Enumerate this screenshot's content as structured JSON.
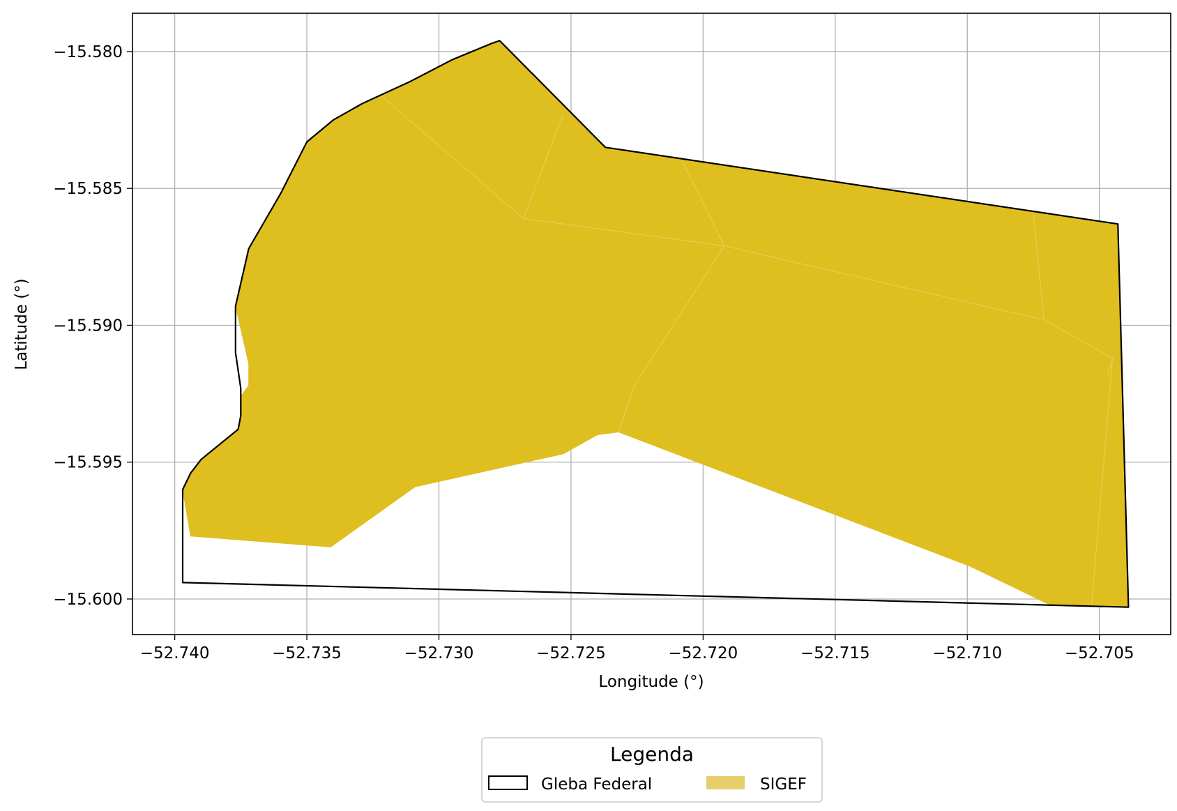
{
  "chart_data": {
    "type": "map",
    "xlabel": "Longitude (°)",
    "ylabel": "Latitude (°)",
    "xlim": [
      -52.7416,
      -52.7023
    ],
    "ylim": [
      -15.6013,
      -15.5786
    ],
    "grid": true,
    "x_ticks": [
      -52.74,
      -52.735,
      -52.73,
      -52.725,
      -52.72,
      -52.715,
      -52.71,
      -52.705
    ],
    "y_ticks": [
      -15.58,
      -15.585,
      -15.59,
      -15.595,
      -15.6
    ],
    "x_tick_labels": [
      "−52.740",
      "−52.735",
      "−52.730",
      "−52.725",
      "−52.720",
      "−52.715",
      "−52.710",
      "−52.705"
    ],
    "y_tick_labels": [
      "−15.580",
      "−15.585",
      "−15.590",
      "−15.595",
      "−15.600"
    ],
    "legend": {
      "title": "Legenda",
      "placement": "bottom-center",
      "entries": [
        {
          "label": "Gleba Federal",
          "style": "outline",
          "color": "#000000"
        },
        {
          "label": "SIGEF",
          "style": "fill",
          "color": "#e6cf6b"
        }
      ]
    },
    "layers": [
      {
        "name": "Gleba Federal",
        "kind": "outline",
        "stroke": "#000000",
        "points": [
          [
            -52.7397,
            -15.5994
          ],
          [
            -52.7397,
            -15.596
          ],
          [
            -52.7394,
            -15.5954
          ],
          [
            -52.739,
            -15.5949
          ],
          [
            -52.7376,
            -15.5938
          ],
          [
            -52.7375,
            -15.5933
          ],
          [
            -52.7375,
            -15.5923
          ],
          [
            -52.7377,
            -15.591
          ],
          [
            -52.7377,
            -15.5893
          ],
          [
            -52.7372,
            -15.5872
          ],
          [
            -52.736,
            -15.5852
          ],
          [
            -52.735,
            -15.5833
          ],
          [
            -52.734,
            -15.5825
          ],
          [
            -52.7329,
            -15.5819
          ],
          [
            -52.7311,
            -15.5811
          ],
          [
            -52.7295,
            -15.5803
          ],
          [
            -52.728,
            -15.5797
          ],
          [
            -52.7277,
            -15.5796
          ],
          [
            -52.7237,
            -15.5835
          ],
          [
            -52.7043,
            -15.5863
          ],
          [
            -52.7039,
            -15.6003
          ],
          [
            -52.7397,
            -15.5994
          ]
        ]
      },
      {
        "name": "SIGEF",
        "kind": "fill",
        "fill": "#dfbe1f",
        "points": [
          [
            -52.7394,
            -15.5977
          ],
          [
            -52.7341,
            -15.5981
          ],
          [
            -52.7309,
            -15.5959
          ],
          [
            -52.7253,
            -15.5947
          ],
          [
            -52.724,
            -15.594
          ],
          [
            -52.7232,
            -15.5939
          ],
          [
            -52.7099,
            -15.5988
          ],
          [
            -52.7069,
            -15.6002
          ],
          [
            -52.7039,
            -15.6003
          ],
          [
            -52.7043,
            -15.5863
          ],
          [
            -52.7237,
            -15.5835
          ],
          [
            -52.7277,
            -15.5796
          ],
          [
            -52.728,
            -15.5797
          ],
          [
            -52.7295,
            -15.5803
          ],
          [
            -52.7311,
            -15.5811
          ],
          [
            -52.7329,
            -15.5819
          ],
          [
            -52.734,
            -15.5825
          ],
          [
            -52.735,
            -15.5833
          ],
          [
            -52.736,
            -15.5852
          ],
          [
            -52.7372,
            -15.5872
          ],
          [
            -52.7377,
            -15.5893
          ],
          [
            -52.7372,
            -15.5914
          ],
          [
            -52.7372,
            -15.5922
          ],
          [
            -52.7375,
            -15.5926
          ],
          [
            -52.7375,
            -15.5933
          ],
          [
            -52.7376,
            -15.5938
          ],
          [
            -52.739,
            -15.5949
          ],
          [
            -52.7394,
            -15.5954
          ],
          [
            -52.7397,
            -15.596
          ],
          [
            -52.7394,
            -15.5977
          ]
        ]
      }
    ],
    "parcel_boundaries": [
      [
        [
          -52.7322,
          -15.5816
        ],
        [
          -52.7268,
          -15.5861
        ],
        [
          -52.7192,
          -15.5871
        ],
        [
          -52.7071,
          -15.5898
        ],
        [
          -52.7045,
          -15.5912
        ],
        [
          -52.7047,
          -15.5919
        ]
      ],
      [
        [
          -52.7268,
          -15.5861
        ],
        [
          -52.7253,
          -15.5823
        ]
      ],
      [
        [
          -52.7208,
          -15.584
        ],
        [
          -52.7192,
          -15.5871
        ],
        [
          -52.7226,
          -15.5922
        ],
        [
          -52.7232,
          -15.5939
        ]
      ],
      [
        [
          -52.7075,
          -15.5859
        ],
        [
          -52.7071,
          -15.5898
        ]
      ],
      [
        [
          -52.7045,
          -15.5912
        ],
        [
          -52.7053,
          -15.6003
        ]
      ]
    ]
  }
}
